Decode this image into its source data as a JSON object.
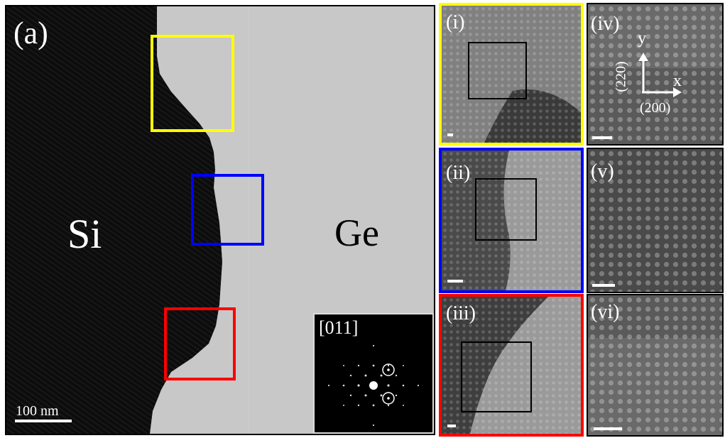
{
  "main_panel": {
    "label": "(a)",
    "left_material": "Si",
    "right_material": "Ge",
    "scalebar": "100 nm",
    "highlight_colors": [
      "#ffff00",
      "#0000ff",
      "#ff0000"
    ],
    "inset": {
      "zone_axis": "[011]"
    }
  },
  "zoom_panels": [
    {
      "label": "(i)",
      "border_color": "#ffff00"
    },
    {
      "label": "(ii)",
      "border_color": "#0000ff"
    },
    {
      "label": "(iii)",
      "border_color": "#ff0000"
    }
  ],
  "detail_panels": [
    {
      "label": "(iv)"
    },
    {
      "label": "(v)"
    },
    {
      "label": "(vi)"
    }
  ],
  "axes": {
    "y": "y",
    "x": "x",
    "y_plane": "(220)",
    "x_plane": "(200)"
  }
}
